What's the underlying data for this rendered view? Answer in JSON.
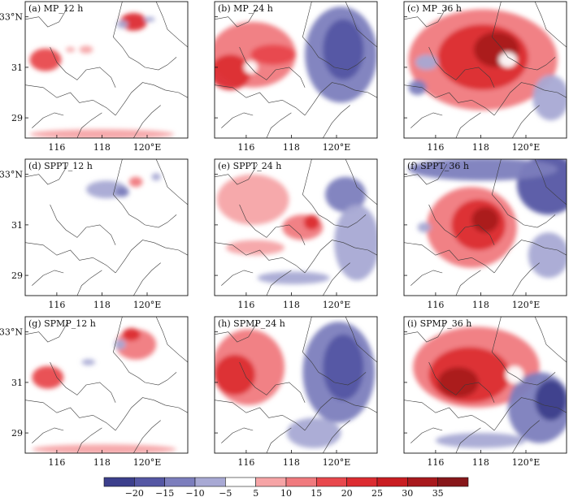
{
  "chart_data": {
    "type": "heatmap",
    "grid_rows": 3,
    "grid_cols": 3,
    "x_ticks": [
      "116",
      "118",
      "120°E"
    ],
    "y_ticks": [
      "33°N",
      "31",
      "29"
    ],
    "panels": [
      {
        "id": "a",
        "title": "(a) MP_12 h",
        "blobs": [
          {
            "lon": 115.5,
            "lat": 31.3,
            "rx": 0.7,
            "ry": 0.45,
            "v": 18
          },
          {
            "lon": 119.4,
            "lat": 32.8,
            "rx": 0.6,
            "ry": 0.35,
            "v": 20
          },
          {
            "lon": 117.3,
            "lat": 31.7,
            "rx": 0.3,
            "ry": 0.15,
            "v": 8
          },
          {
            "lon": 116.6,
            "lat": 31.7,
            "rx": 0.2,
            "ry": 0.1,
            "v": 8
          },
          {
            "lon": 118.9,
            "lat": 32.7,
            "rx": 0.25,
            "ry": 0.15,
            "v": -10
          },
          {
            "lon": 120.1,
            "lat": 32.9,
            "rx": 0.25,
            "ry": 0.1,
            "v": -8
          },
          {
            "lon": 118,
            "lat": 28.35,
            "rx": 3.2,
            "ry": 0.2,
            "v": 8
          }
        ]
      },
      {
        "id": "b",
        "title": "(b) MP_24 h",
        "blobs": [
          {
            "lon": 116.3,
            "lat": 31.5,
            "rx": 1.9,
            "ry": 1.3,
            "v": 12
          },
          {
            "lon": 115.3,
            "lat": 30.8,
            "rx": 0.9,
            "ry": 0.7,
            "v": 22
          },
          {
            "lon": 117.2,
            "lat": 31.5,
            "rx": 1.0,
            "ry": 0.4,
            "v": 15
          },
          {
            "lon": 120.2,
            "lat": 31.5,
            "rx": 1.6,
            "ry": 1.9,
            "v": -12
          },
          {
            "lon": 120.3,
            "lat": 31.7,
            "rx": 0.9,
            "ry": 1.2,
            "v": -18
          },
          {
            "lon": 116.2,
            "lat": 31.0,
            "rx": 0.3,
            "ry": 0.25,
            "v": 0
          }
        ]
      },
      {
        "id": "c",
        "title": "(c) MP_36 h",
        "blobs": [
          {
            "lon": 118.1,
            "lat": 31.3,
            "rx": 3.3,
            "ry": 2.0,
            "v": 14
          },
          {
            "lon": 118.1,
            "lat": 31.4,
            "rx": 2.0,
            "ry": 1.3,
            "v": 22
          },
          {
            "lon": 118.7,
            "lat": 31.7,
            "rx": 1.0,
            "ry": 0.7,
            "v": 30
          },
          {
            "lon": 121.1,
            "lat": 29.8,
            "rx": 0.8,
            "ry": 0.9,
            "v": -10
          },
          {
            "lon": 115.6,
            "lat": 31.2,
            "rx": 0.5,
            "ry": 0.3,
            "v": -10
          },
          {
            "lon": 119.2,
            "lat": 31.3,
            "rx": 0.4,
            "ry": 0.3,
            "v": 0
          },
          {
            "lon": 115.2,
            "lat": 30.2,
            "rx": 0.4,
            "ry": 0.3,
            "v": -12
          }
        ]
      },
      {
        "id": "d",
        "title": "(d) SPPT_12 h",
        "blobs": [
          {
            "lon": 118.2,
            "lat": 32.4,
            "rx": 0.9,
            "ry": 0.35,
            "v": -8
          },
          {
            "lon": 118.9,
            "lat": 32.3,
            "rx": 0.3,
            "ry": 0.2,
            "v": -14
          },
          {
            "lon": 119.5,
            "lat": 32.7,
            "rx": 0.3,
            "ry": 0.2,
            "v": 10
          },
          {
            "lon": 120.4,
            "lat": 32.9,
            "rx": 0.2,
            "ry": 0.15,
            "v": -8
          }
        ]
      },
      {
        "id": "e",
        "title": "(e) SPPT_24 h",
        "blobs": [
          {
            "lon": 116.3,
            "lat": 32.0,
            "rx": 1.6,
            "ry": 1.0,
            "v": 8
          },
          {
            "lon": 118.5,
            "lat": 30.9,
            "rx": 0.9,
            "ry": 0.5,
            "v": 12
          },
          {
            "lon": 118.9,
            "lat": 31.1,
            "rx": 0.35,
            "ry": 0.3,
            "v": 22
          },
          {
            "lon": 120.4,
            "lat": 32.2,
            "rx": 0.9,
            "ry": 0.7,
            "v": -12
          },
          {
            "lon": 120.9,
            "lat": 30.3,
            "rx": 1.0,
            "ry": 1.5,
            "v": -7
          },
          {
            "lon": 118.1,
            "lat": 28.9,
            "rx": 1.6,
            "ry": 0.25,
            "v": -8
          },
          {
            "lon": 116.4,
            "lat": 30.1,
            "rx": 1.3,
            "ry": 0.3,
            "v": 8
          }
        ]
      },
      {
        "id": "f",
        "title": "(f) SPPT_36 h",
        "blobs": [
          {
            "lon": 121.0,
            "lat": 32.6,
            "rx": 1.4,
            "ry": 1.2,
            "v": -18
          },
          {
            "lon": 118.1,
            "lat": 33.2,
            "rx": 3.3,
            "ry": 0.45,
            "v": -14
          },
          {
            "lon": 117.6,
            "lat": 30.9,
            "rx": 2.0,
            "ry": 1.6,
            "v": 14
          },
          {
            "lon": 117.9,
            "lat": 31.0,
            "rx": 1.2,
            "ry": 1.0,
            "v": 24
          },
          {
            "lon": 118.2,
            "lat": 31.2,
            "rx": 0.6,
            "ry": 0.5,
            "v": 30
          },
          {
            "lon": 121.0,
            "lat": 29.8,
            "rx": 0.9,
            "ry": 0.9,
            "v": -8
          },
          {
            "lon": 115.5,
            "lat": 30.9,
            "rx": 0.3,
            "ry": 0.2,
            "v": -10
          }
        ]
      },
      {
        "id": "g",
        "title": "(g) SPMP_12 h",
        "blobs": [
          {
            "lon": 115.6,
            "lat": 31.2,
            "rx": 0.7,
            "ry": 0.45,
            "v": 17
          },
          {
            "lon": 119.5,
            "lat": 32.5,
            "rx": 0.9,
            "ry": 0.6,
            "v": 12
          },
          {
            "lon": 119.3,
            "lat": 32.9,
            "rx": 0.4,
            "ry": 0.25,
            "v": 22
          },
          {
            "lon": 118.8,
            "lat": 32.5,
            "rx": 0.25,
            "ry": 0.2,
            "v": -10
          },
          {
            "lon": 117.4,
            "lat": 31.8,
            "rx": 0.3,
            "ry": 0.12,
            "v": -8
          },
          {
            "lon": 118.1,
            "lat": 28.35,
            "rx": 3.2,
            "ry": 0.2,
            "v": 8
          }
        ]
      },
      {
        "id": "h",
        "title": "(h) SPMP_24 h",
        "blobs": [
          {
            "lon": 116.1,
            "lat": 31.6,
            "rx": 1.6,
            "ry": 1.5,
            "v": 12
          },
          {
            "lon": 115.5,
            "lat": 31.3,
            "rx": 0.9,
            "ry": 0.8,
            "v": 22
          },
          {
            "lon": 120.1,
            "lat": 31.4,
            "rx": 1.6,
            "ry": 2.0,
            "v": -13
          },
          {
            "lon": 120.3,
            "lat": 31.6,
            "rx": 0.9,
            "ry": 1.3,
            "v": -19
          },
          {
            "lon": 119.0,
            "lat": 29.0,
            "rx": 1.2,
            "ry": 0.6,
            "v": -8
          }
        ]
      },
      {
        "id": "i",
        "title": "(i) SPMP_36 h",
        "blobs": [
          {
            "lon": 117.8,
            "lat": 31.6,
            "rx": 2.8,
            "ry": 1.6,
            "v": 14
          },
          {
            "lon": 117.5,
            "lat": 31.3,
            "rx": 1.8,
            "ry": 1.1,
            "v": 24
          },
          {
            "lon": 117.0,
            "lat": 31.0,
            "rx": 0.9,
            "ry": 0.6,
            "v": 32
          },
          {
            "lon": 120.6,
            "lat": 30.0,
            "rx": 1.4,
            "ry": 1.4,
            "v": -14
          },
          {
            "lon": 121.1,
            "lat": 30.3,
            "rx": 0.7,
            "ry": 0.8,
            "v": -22
          },
          {
            "lon": 119.5,
            "lat": 31.3,
            "rx": 0.4,
            "ry": 0.35,
            "v": 0
          },
          {
            "lon": 118.0,
            "lat": 28.7,
            "rx": 2.0,
            "ry": 0.3,
            "v": -10
          }
        ]
      }
    ],
    "colorbar": {
      "labels": [
        "−20",
        "−15",
        "−10",
        "−5",
        "5",
        "10",
        "15",
        "20",
        "25",
        "30",
        "35"
      ],
      "bounds": [
        -20,
        -15,
        -10,
        -5,
        5,
        10,
        15,
        20,
        25,
        30,
        35
      ],
      "colors": [
        "#3c3f8c",
        "#5557a4",
        "#7c7ebd",
        "#a8a9d4",
        "#ffffff",
        "#f6a4a6",
        "#f07a7e",
        "#e8484d",
        "#dc2c31",
        "#c91d22",
        "#a8191d",
        "#87171a"
      ]
    }
  }
}
